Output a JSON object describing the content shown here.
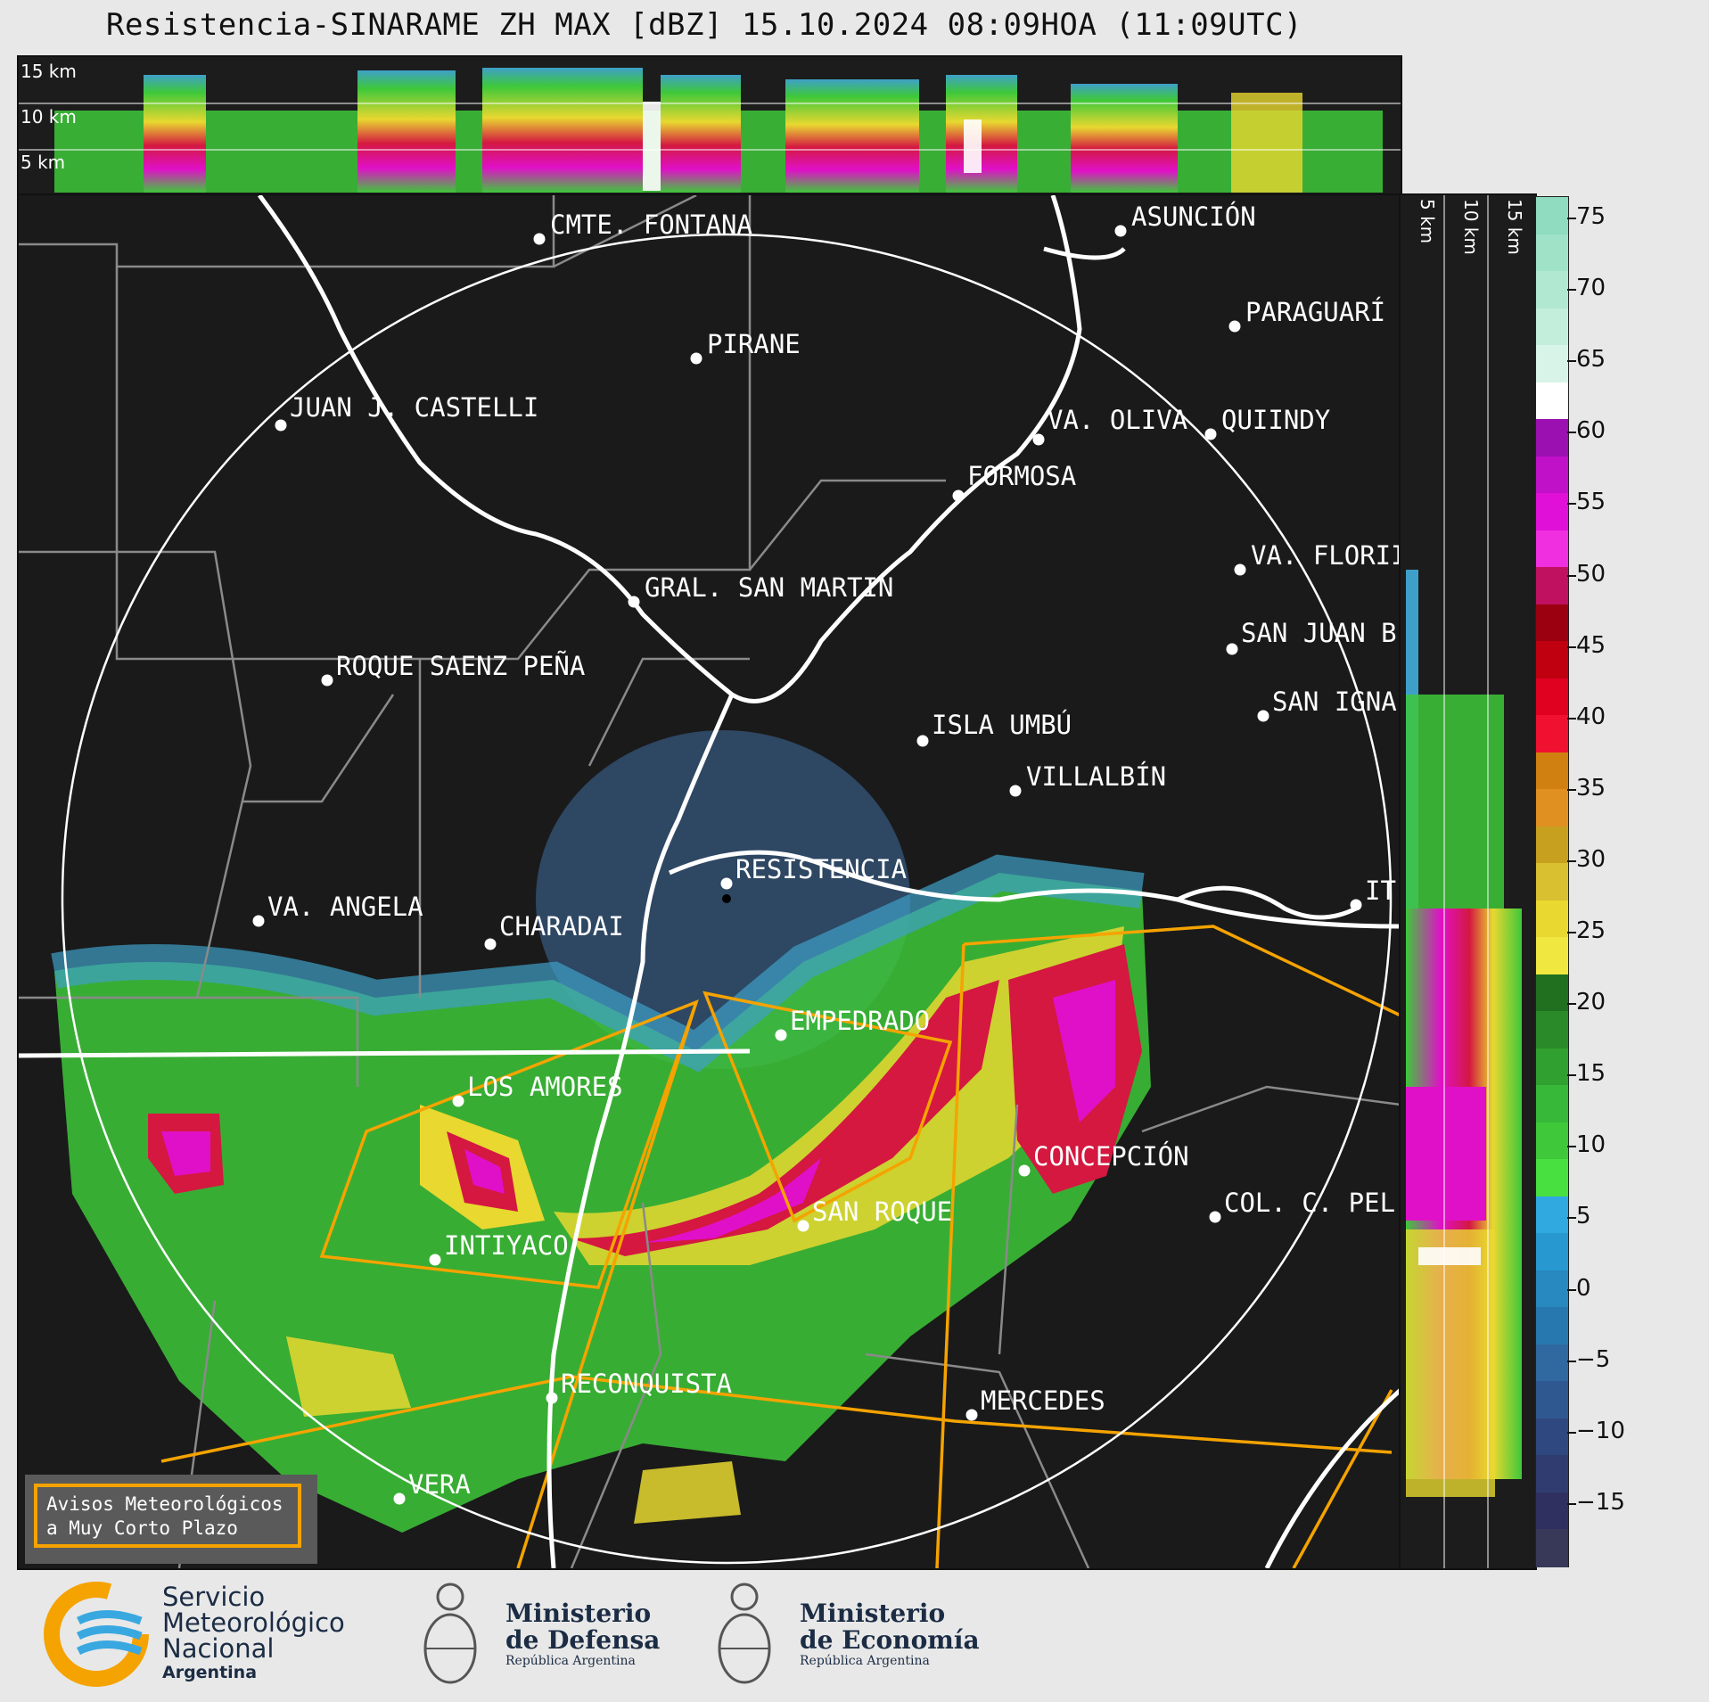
{
  "title": "Resistencia-SINARAME ZH MAX [dBZ] 15.10.2024 08:09HOA (11:09UTC)",
  "cross_section_top": {
    "labels": [
      "15 km",
      "10 km",
      "5 km"
    ]
  },
  "cross_section_right": {
    "labels": [
      "5 km",
      "10 km",
      "15 km"
    ]
  },
  "colorbar": {
    "unit": "dBZ",
    "ticks": [
      "75",
      "70",
      "65",
      "60",
      "55",
      "50",
      "45",
      "40",
      "35",
      "30",
      "25",
      "20",
      "15",
      "10",
      "5",
      "0",
      "−5",
      "−10",
      "−15"
    ]
  },
  "cities": [
    {
      "name": "CMTE. FONTANA"
    },
    {
      "name": "ASUNCIÓN"
    },
    {
      "name": "PARAGUARÍ"
    },
    {
      "name": "PIRANE"
    },
    {
      "name": "JUAN J. CASTELLI"
    },
    {
      "name": "VA. OLIVA"
    },
    {
      "name": "QUIINDY"
    },
    {
      "name": "FORMOSA"
    },
    {
      "name": "VA. FLORII"
    },
    {
      "name": "GRAL. SAN MARTIN"
    },
    {
      "name": "SAN JUAN B"
    },
    {
      "name": "ROQUE SAENZ PEÑA"
    },
    {
      "name": "SAN IGNA"
    },
    {
      "name": "ISLA UMBÚ"
    },
    {
      "name": "VILLALBÍN"
    },
    {
      "name": "RESISTENCIA"
    },
    {
      "name": "VA. ANGELA"
    },
    {
      "name": "CHARADAI"
    },
    {
      "name": "IT"
    },
    {
      "name": "EMPEDRADO"
    },
    {
      "name": "LOS AMORES"
    },
    {
      "name": "CONCEPCIÓN"
    },
    {
      "name": "SAN ROQUE"
    },
    {
      "name": "COL. C. PEL"
    },
    {
      "name": "INTIYACO"
    },
    {
      "name": "RECONQUISTA"
    },
    {
      "name": "MERCEDES"
    },
    {
      "name": "VERA"
    }
  ],
  "warning_box": {
    "line1": "Avisos Meteorológicos",
    "line2": "a Muy Corto Plazo"
  },
  "logos": {
    "smn_line1": "Servicio",
    "smn_line2": "Meteorológico",
    "smn_line3": "Nacional",
    "smn_line4": "Argentina",
    "defensa_line1": "Ministerio",
    "defensa_line2": "de Defensa",
    "defensa_line3": "República Argentina",
    "economia_line1": "Ministerio",
    "economia_line2": "de Economía",
    "economia_line3": "República Argentina"
  },
  "colors": {
    "accent_orange": "#f5a300",
    "map_bg": "#1a1a1a",
    "border_gray": "#8a8a8a"
  }
}
